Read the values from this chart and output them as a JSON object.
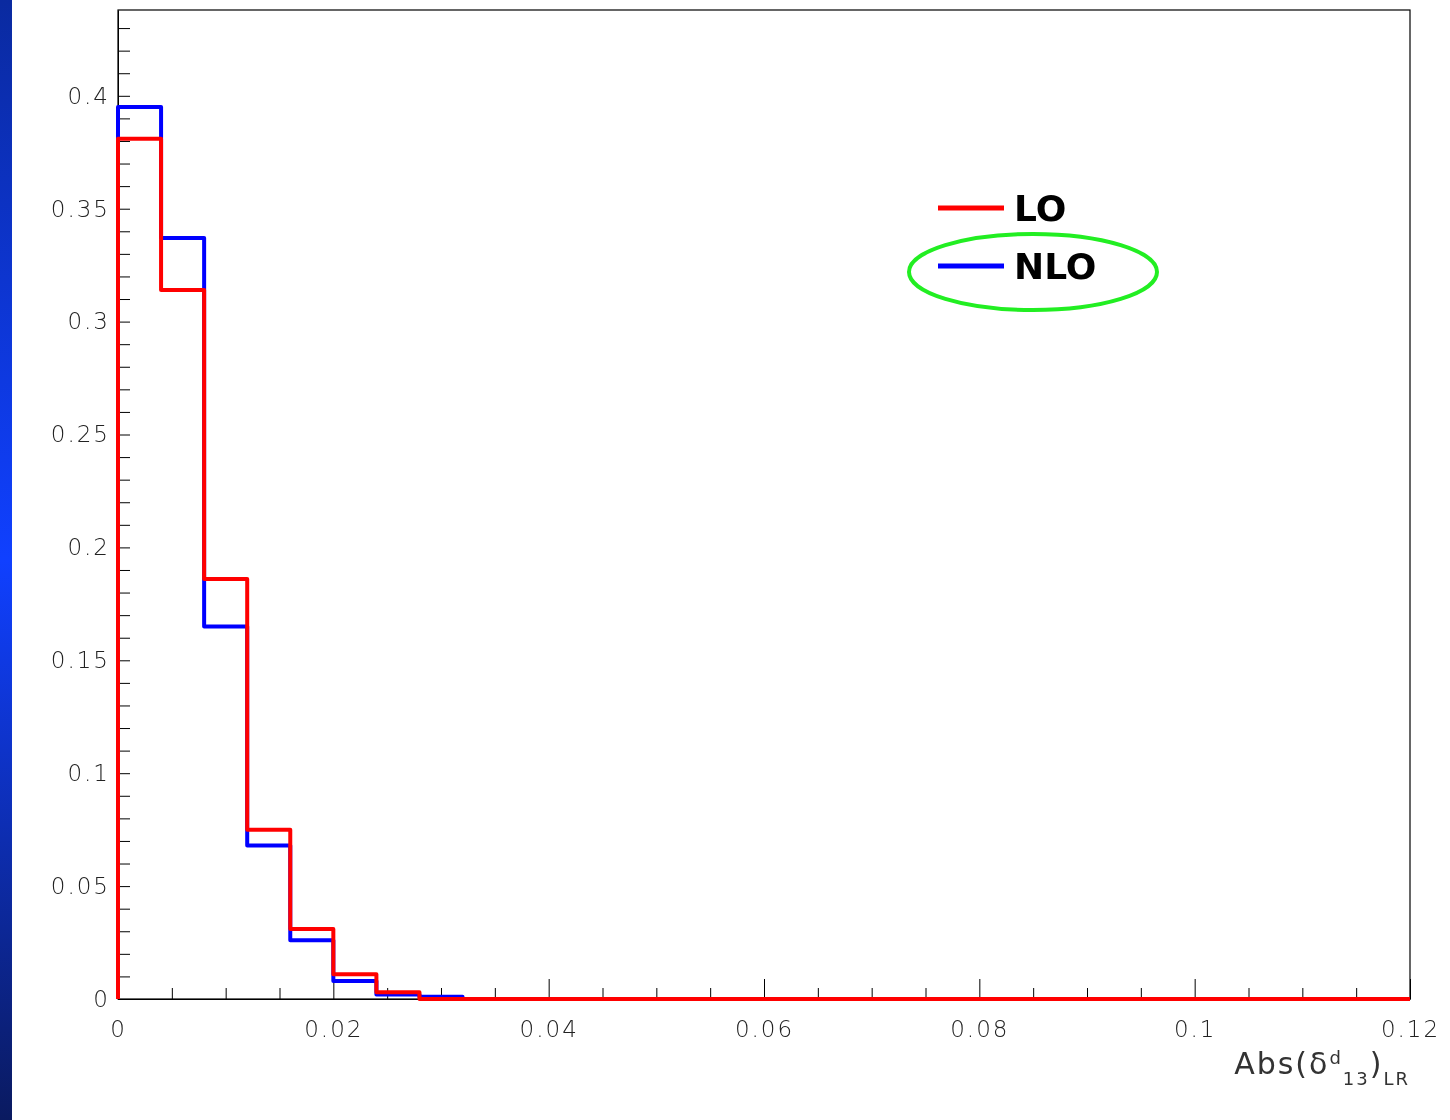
{
  "chart_data": {
    "type": "histogram",
    "xlabel": "Abs(δ$^{d}$$_{13}$)$_{LR}$",
    "bins": [
      0,
      0.004,
      0.008,
      0.012,
      0.016,
      0.02,
      0.024,
      0.028,
      0.032,
      0.036,
      0.04,
      0.044,
      0.048,
      0.052,
      0.056,
      0.06,
      0.064,
      0.068,
      0.072,
      0.076,
      0.08,
      0.084,
      0.088,
      0.092,
      0.096,
      0.1,
      0.104,
      0.108,
      0.112,
      0.116,
      0.12
    ],
    "series": [
      {
        "name": "LO",
        "color": "#ff0000",
        "values": [
          0.381,
          0.314,
          0.186,
          0.075,
          0.031,
          0.011,
          0.003,
          0,
          0,
          0,
          0,
          0,
          0,
          0,
          0,
          0,
          0,
          0,
          0,
          0,
          0,
          0,
          0,
          0,
          0,
          0,
          0,
          0,
          0,
          0
        ]
      },
      {
        "name": "NLO",
        "color": "#0000ff",
        "values": [
          0.395,
          0.337,
          0.165,
          0.068,
          0.026,
          0.008,
          0.002,
          0.001,
          0,
          0,
          0,
          0,
          0,
          0,
          0,
          0,
          0,
          0,
          0,
          0,
          0,
          0,
          0,
          0,
          0,
          0,
          0,
          0,
          0,
          0
        ]
      }
    ],
    "xlim": [
      0,
      0.12
    ],
    "ylim": [
      0,
      0.438
    ],
    "xticks": [
      0,
      {
        "value": 0.005,
        "label": null
      },
      {
        "value": 0.01,
        "label": null
      },
      {
        "value": 0.015,
        "label": null
      },
      0.02,
      {
        "value": 0.025,
        "label": null
      },
      {
        "value": 0.03,
        "label": null
      },
      {
        "value": 0.035,
        "label": null
      },
      0.04,
      {
        "value": 0.045,
        "label": null
      },
      {
        "value": 0.05,
        "label": null
      },
      {
        "value": 0.055,
        "label": null
      },
      0.06,
      {
        "value": 0.065,
        "label": null
      },
      {
        "value": 0.07,
        "label": null
      },
      {
        "value": 0.075,
        "label": null
      },
      0.08,
      {
        "value": 0.085,
        "label": null
      },
      {
        "value": 0.09,
        "label": null
      },
      {
        "value": 0.095,
        "label": null
      },
      0.1,
      {
        "value": 0.105,
        "label": null
      },
      {
        "value": 0.11,
        "label": null
      },
      {
        "value": 0.115,
        "label": null
      },
      0.12
    ],
    "yticks": [
      0,
      {
        "value": 0.01,
        "label": null
      },
      {
        "value": 0.02,
        "label": null
      },
      {
        "value": 0.03,
        "label": null
      },
      {
        "value": 0.04,
        "label": null
      },
      0.05,
      {
        "value": 0.06,
        "label": null
      },
      {
        "value": 0.07,
        "label": null
      },
      {
        "value": 0.08,
        "label": null
      },
      {
        "value": 0.09,
        "label": null
      },
      0.1,
      {
        "value": 0.11,
        "label": null
      },
      {
        "value": 0.12,
        "label": null
      },
      {
        "value": 0.13,
        "label": null
      },
      {
        "value": 0.14,
        "label": null
      },
      0.15,
      {
        "value": 0.16,
        "label": null
      },
      {
        "value": 0.17,
        "label": null
      },
      {
        "value": 0.18,
        "label": null
      },
      {
        "value": 0.19,
        "label": null
      },
      0.2,
      {
        "value": 0.21,
        "label": null
      },
      {
        "value": 0.22,
        "label": null
      },
      {
        "value": 0.23,
        "label": null
      },
      {
        "value": 0.24,
        "label": null
      },
      0.25,
      {
        "value": 0.26,
        "label": null
      },
      {
        "value": 0.27,
        "label": null
      },
      {
        "value": 0.28,
        "label": null
      },
      {
        "value": 0.29,
        "label": null
      },
      0.3,
      {
        "value": 0.31,
        "label": null
      },
      {
        "value": 0.32,
        "label": null
      },
      {
        "value": 0.33,
        "label": null
      },
      {
        "value": 0.34,
        "label": null
      },
      0.35,
      {
        "value": 0.36,
        "label": null
      },
      {
        "value": 0.37,
        "label": null
      },
      {
        "value": 0.38,
        "label": null
      },
      {
        "value": 0.39,
        "label": null
      },
      0.4,
      {
        "value": 0.41,
        "label": null
      },
      {
        "value": 0.42,
        "label": null
      },
      {
        "value": 0.43,
        "label": null
      }
    ],
    "grid": false,
    "legend": "top right",
    "line_style": "solid"
  }
}
